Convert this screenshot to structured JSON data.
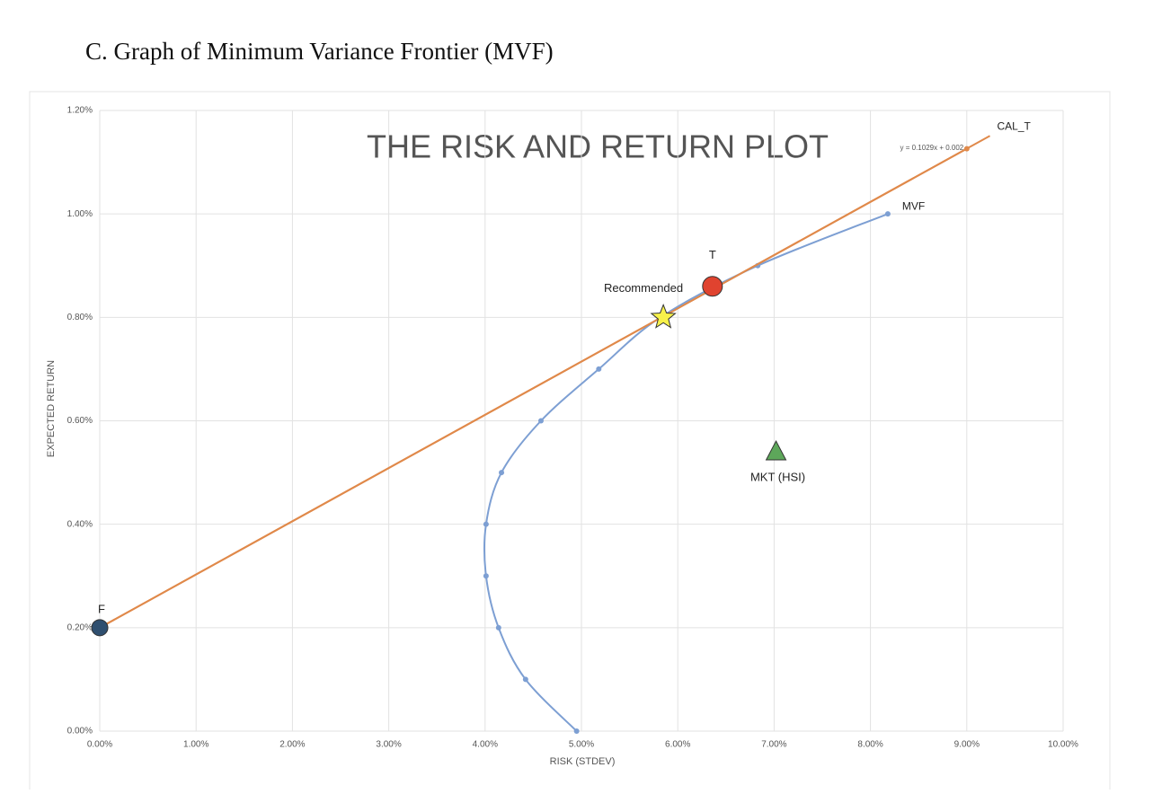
{
  "heading": "C. Graph of Minimum Variance Frontier (MVF)",
  "chart_data": {
    "type": "scatter",
    "title": "THE RISK AND RETURN PLOT",
    "x_label": "RISK (STDEV)",
    "y_label": "EXPECTED RETURN",
    "xlim": [
      0,
      10
    ],
    "ylim": [
      0,
      1.2
    ],
    "xticks": [
      {
        "value": 0,
        "label": "0.00%"
      },
      {
        "value": 1,
        "label": "1.00%"
      },
      {
        "value": 2,
        "label": "2.00%"
      },
      {
        "value": 3,
        "label": "3.00%"
      },
      {
        "value": 4,
        "label": "4.00%"
      },
      {
        "value": 5,
        "label": "5.00%"
      },
      {
        "value": 6,
        "label": "6.00%"
      },
      {
        "value": 7,
        "label": "7.00%"
      },
      {
        "value": 8,
        "label": "8.00%"
      },
      {
        "value": 9,
        "label": "9.00%"
      },
      {
        "value": 10,
        "label": "10.00%"
      }
    ],
    "yticks": [
      {
        "value": 0,
        "label": "0.00%"
      },
      {
        "value": 0.2,
        "label": "0.20%"
      },
      {
        "value": 0.4,
        "label": "0.40%"
      },
      {
        "value": 0.6,
        "label": "0.60%"
      },
      {
        "value": 0.8,
        "label": "0.80%"
      },
      {
        "value": 1,
        "label": "1.00%"
      },
      {
        "value": 1.2,
        "label": "1.20%"
      }
    ],
    "grid": true,
    "series": [
      {
        "name": "MVF",
        "color": "#7d9fd3",
        "smooth": true,
        "x": [
          4.95,
          4.42,
          4.14,
          4.01,
          4.01,
          4.17,
          4.58,
          5.18,
          5.82,
          6.83,
          8.18
        ],
        "values": [
          0,
          0.1,
          0.2,
          0.3,
          0.4,
          0.5,
          0.6,
          0.7,
          0.8,
          0.9,
          1.0
        ]
      },
      {
        "name": "CAL_T",
        "color": "#e0894a",
        "smooth": false,
        "x": [
          0,
          9.0
        ],
        "values": [
          0.2,
          1.126
        ]
      }
    ],
    "trendline": {
      "label": "y = 0.1029x + 0.002",
      "color": "#e0894a",
      "x": [
        0,
        9.24
      ],
      "values": [
        0.2,
        1.151
      ]
    },
    "points": [
      {
        "name": "F",
        "x": 0,
        "value": 0.2,
        "color": "#2f4f6f",
        "marker": "circle"
      },
      {
        "name": "Recommended",
        "x": 5.85,
        "value": 0.8,
        "color": "#f7f24a",
        "marker": "star"
      },
      {
        "name": "T",
        "x": 6.36,
        "value": 0.86,
        "color": "#e0432f",
        "marker": "circle"
      },
      {
        "name": "MKT (HSI)",
        "x": 7.02,
        "value": 0.54,
        "color": "#5da75a",
        "marker": "triangle"
      }
    ]
  }
}
